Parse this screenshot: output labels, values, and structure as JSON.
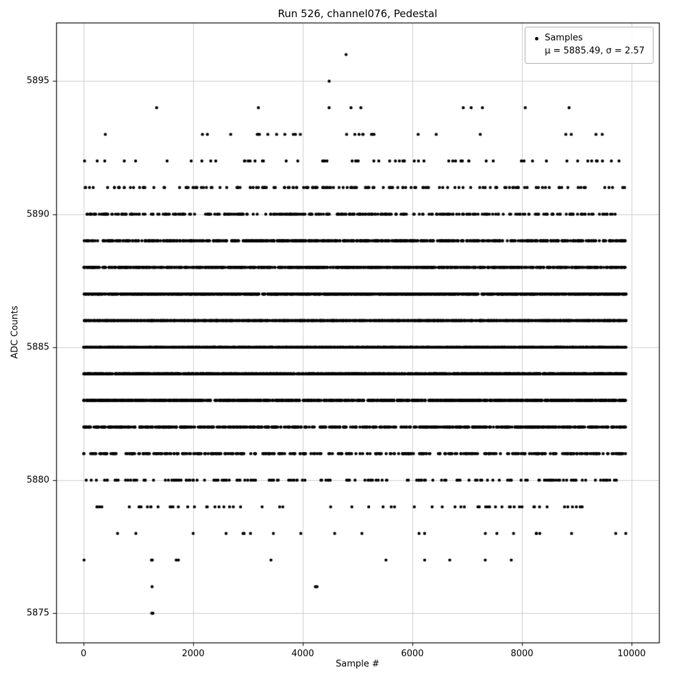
{
  "figure": {
    "title": "Run 526, channel076, Pedestal",
    "xlabel": "Sample #",
    "ylabel": "ADC Counts"
  },
  "legend": {
    "label": "Samples",
    "stats": "μ = 5885.49, σ = 2.57"
  },
  "colors": {
    "background": "#ffffff",
    "axis": "#000000",
    "grid": "#cccccc",
    "marker": "#000000"
  },
  "chart_data": {
    "type": "scatter",
    "title": "Run 526, channel076, Pedestal",
    "xlabel": "Sample #",
    "ylabel": "ADC Counts",
    "xlim": [
      -500,
      10500
    ],
    "ylim": [
      5873.9,
      5897.2
    ],
    "xticks": [
      0,
      2000,
      4000,
      6000,
      8000,
      10000
    ],
    "yticks": [
      5875,
      5880,
      5885,
      5890,
      5895
    ],
    "grid": true,
    "legend_position": "upper right",
    "series_label": "Samples",
    "n_samples": 9950,
    "x_start": 0,
    "x_end": 9900,
    "mean": 5885.49,
    "sigma": 2.57,
    "y_quantization": 1,
    "y_min": 5875,
    "y_max": 5896,
    "seed": 42,
    "baseline_wander": {
      "amplitude": 0.35,
      "period": 7100,
      "phase_min_x": 1250
    },
    "marker": {
      "color": "#000000",
      "radius": 2.2
    },
    "outliers": [
      {
        "x": 4790,
        "y": 5896
      },
      {
        "x": 1245,
        "y": 5875
      },
      {
        "x": 1265,
        "y": 5875
      },
      {
        "x": 1250,
        "y": 5876
      },
      {
        "x": 4230,
        "y": 5876
      },
      {
        "x": 4260,
        "y": 5876
      },
      {
        "x": 1255,
        "y": 5877
      },
      {
        "x": 1690,
        "y": 5877
      },
      {
        "x": 1730,
        "y": 5877
      },
      {
        "x": 3420,
        "y": 5877
      },
      {
        "x": 3190,
        "y": 5894
      },
      {
        "x": 4880,
        "y": 5894
      },
      {
        "x": 5060,
        "y": 5894
      },
      {
        "x": 8060,
        "y": 5894
      },
      {
        "x": 8860,
        "y": 5894
      },
      {
        "x": 3170,
        "y": 5893
      },
      {
        "x": 3210,
        "y": 5893
      },
      {
        "x": 4800,
        "y": 5893
      },
      {
        "x": 4950,
        "y": 5893
      },
      {
        "x": 5100,
        "y": 5893
      },
      {
        "x": 5300,
        "y": 5893
      },
      {
        "x": 8800,
        "y": 5893
      },
      {
        "x": 8900,
        "y": 5893
      },
      {
        "x": 9350,
        "y": 5893
      }
    ]
  }
}
